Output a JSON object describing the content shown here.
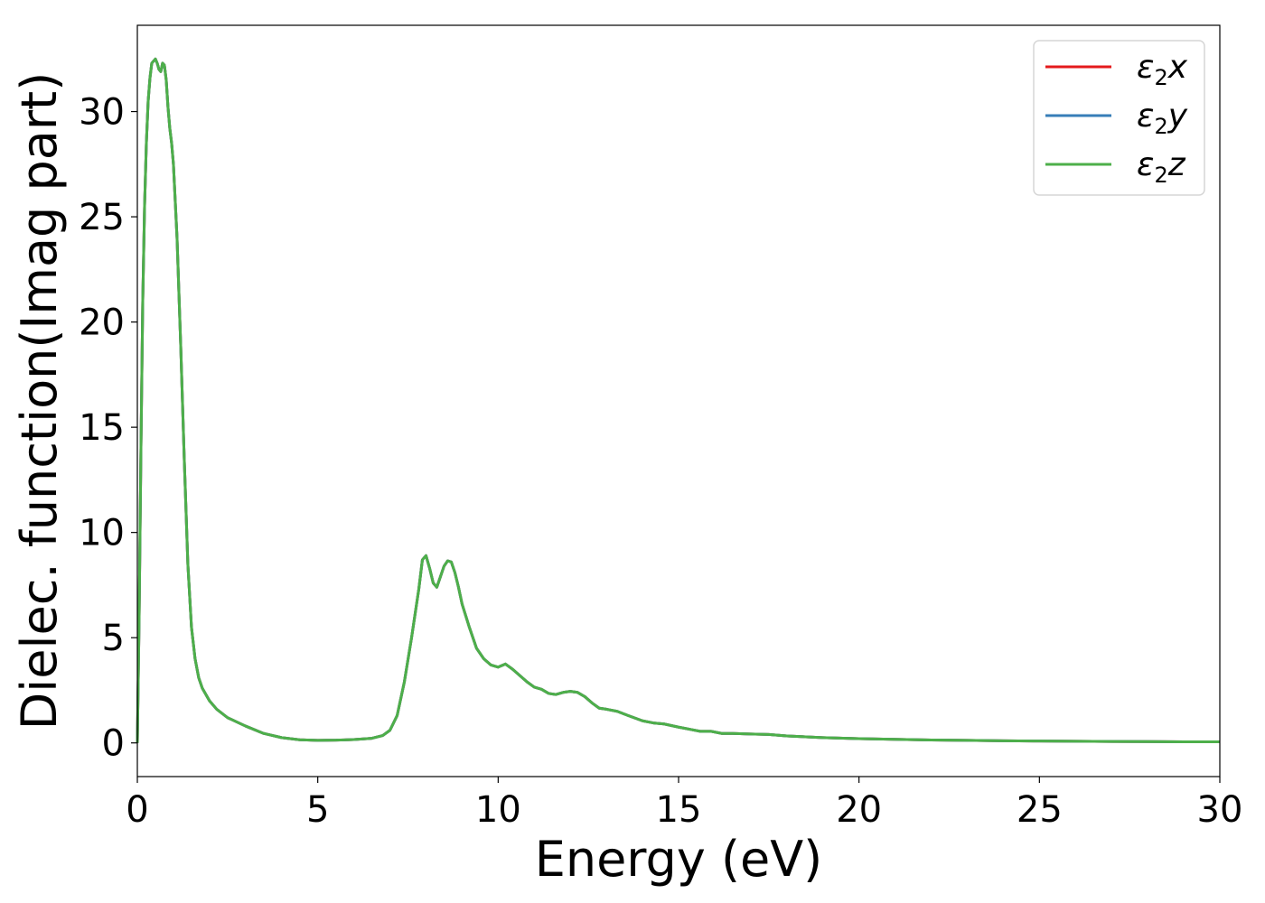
{
  "chart_data": {
    "type": "line",
    "title": "",
    "xlabel": "Energy (eV)",
    "ylabel": "Dielec. function(Imag part)",
    "xlim": [
      0,
      30
    ],
    "ylim": [
      -1.6,
      34.1
    ],
    "xticks": [
      0,
      5,
      10,
      15,
      20,
      25,
      30
    ],
    "yticks": [
      0,
      5,
      10,
      15,
      20,
      25,
      30
    ],
    "grid": false,
    "legend_position": "top-right",
    "series": [
      {
        "name": "ε2x",
        "legend_base": "ε",
        "legend_sub": "2",
        "legend_axis": "x",
        "color": "#e41a1c",
        "x": [
          0,
          0.05,
          0.1,
          0.15,
          0.2,
          0.25,
          0.3,
          0.35,
          0.4,
          0.5,
          0.55,
          0.6,
          0.65,
          0.7,
          0.75,
          0.8,
          0.85,
          0.9,
          0.95,
          1.0,
          1.1,
          1.2,
          1.3,
          1.4,
          1.5,
          1.6,
          1.7,
          1.8,
          2.0,
          2.2,
          2.5,
          3.0,
          3.5,
          4.0,
          4.5,
          5.0,
          5.5,
          6.0,
          6.5,
          6.8,
          7.0,
          7.2,
          7.4,
          7.6,
          7.8,
          7.9,
          8.0,
          8.1,
          8.2,
          8.3,
          8.4,
          8.5,
          8.6,
          8.7,
          8.8,
          8.9,
          9.0,
          9.2,
          9.4,
          9.6,
          9.8,
          10.0,
          10.2,
          10.4,
          10.6,
          10.8,
          11.0,
          11.2,
          11.4,
          11.6,
          11.8,
          12.0,
          12.2,
          12.4,
          12.6,
          12.8,
          13.0,
          13.3,
          13.6,
          14.0,
          14.3,
          14.6,
          15.0,
          15.3,
          15.6,
          15.9,
          16.2,
          16.5,
          17.0,
          17.5,
          18.0,
          19.0,
          20.0,
          21.0,
          22.0,
          23.0,
          24.0,
          25.0,
          26.0,
          27.0,
          28.0,
          29.0,
          30.0
        ],
        "y": [
          0,
          6,
          14,
          21,
          25.5,
          28.5,
          30.5,
          31.6,
          32.3,
          32.5,
          32.3,
          32.0,
          31.9,
          32.3,
          32.2,
          31.5,
          30.2,
          29.2,
          28.5,
          27.5,
          24.0,
          19.0,
          13.5,
          8.5,
          5.5,
          4.0,
          3.1,
          2.6,
          2.0,
          1.6,
          1.2,
          0.8,
          0.45,
          0.25,
          0.15,
          0.12,
          0.13,
          0.16,
          0.22,
          0.35,
          0.6,
          1.3,
          2.9,
          5.0,
          7.3,
          8.7,
          8.9,
          8.3,
          7.6,
          7.4,
          7.9,
          8.4,
          8.65,
          8.6,
          8.1,
          7.4,
          6.6,
          5.5,
          4.5,
          4.0,
          3.7,
          3.6,
          3.75,
          3.5,
          3.2,
          2.9,
          2.65,
          2.55,
          2.35,
          2.3,
          2.4,
          2.45,
          2.4,
          2.2,
          1.9,
          1.65,
          1.6,
          1.5,
          1.3,
          1.05,
          0.95,
          0.9,
          0.75,
          0.65,
          0.55,
          0.55,
          0.45,
          0.45,
          0.42,
          0.4,
          0.33,
          0.25,
          0.2,
          0.17,
          0.14,
          0.12,
          0.1,
          0.09,
          0.08,
          0.07,
          0.06,
          0.05,
          0.05
        ]
      },
      {
        "name": "ε2y",
        "legend_base": "ε",
        "legend_sub": "2",
        "legend_axis": "y",
        "color": "#377eb8",
        "x": [
          0,
          0.05,
          0.1,
          0.15,
          0.2,
          0.25,
          0.3,
          0.35,
          0.4,
          0.5,
          0.55,
          0.6,
          0.65,
          0.7,
          0.75,
          0.8,
          0.85,
          0.9,
          0.95,
          1.0,
          1.1,
          1.2,
          1.3,
          1.4,
          1.5,
          1.6,
          1.7,
          1.8,
          2.0,
          2.2,
          2.5,
          3.0,
          3.5,
          4.0,
          4.5,
          5.0,
          5.5,
          6.0,
          6.5,
          6.8,
          7.0,
          7.2,
          7.4,
          7.6,
          7.8,
          7.9,
          8.0,
          8.1,
          8.2,
          8.3,
          8.4,
          8.5,
          8.6,
          8.7,
          8.8,
          8.9,
          9.0,
          9.2,
          9.4,
          9.6,
          9.8,
          10.0,
          10.2,
          10.4,
          10.6,
          10.8,
          11.0,
          11.2,
          11.4,
          11.6,
          11.8,
          12.0,
          12.2,
          12.4,
          12.6,
          12.8,
          13.0,
          13.3,
          13.6,
          14.0,
          14.3,
          14.6,
          15.0,
          15.3,
          15.6,
          15.9,
          16.2,
          16.5,
          17.0,
          17.5,
          18.0,
          19.0,
          20.0,
          21.0,
          22.0,
          23.0,
          24.0,
          25.0,
          26.0,
          27.0,
          28.0,
          29.0,
          30.0
        ],
        "y": [
          0,
          6,
          14,
          21,
          25.5,
          28.5,
          30.5,
          31.6,
          32.3,
          32.5,
          32.3,
          32.0,
          31.9,
          32.3,
          32.2,
          31.5,
          30.2,
          29.2,
          28.5,
          27.5,
          24.0,
          19.0,
          13.5,
          8.5,
          5.5,
          4.0,
          3.1,
          2.6,
          2.0,
          1.6,
          1.2,
          0.8,
          0.45,
          0.25,
          0.15,
          0.12,
          0.13,
          0.16,
          0.22,
          0.35,
          0.6,
          1.3,
          2.9,
          5.0,
          7.3,
          8.7,
          8.9,
          8.3,
          7.6,
          7.4,
          7.9,
          8.4,
          8.65,
          8.6,
          8.1,
          7.4,
          6.6,
          5.5,
          4.5,
          4.0,
          3.7,
          3.6,
          3.75,
          3.5,
          3.2,
          2.9,
          2.65,
          2.55,
          2.35,
          2.3,
          2.4,
          2.45,
          2.4,
          2.2,
          1.9,
          1.65,
          1.6,
          1.5,
          1.3,
          1.05,
          0.95,
          0.9,
          0.75,
          0.65,
          0.55,
          0.55,
          0.45,
          0.45,
          0.42,
          0.4,
          0.33,
          0.25,
          0.2,
          0.17,
          0.14,
          0.12,
          0.1,
          0.09,
          0.08,
          0.07,
          0.06,
          0.05,
          0.05
        ]
      },
      {
        "name": "ε2z",
        "legend_base": "ε",
        "legend_sub": "2",
        "legend_axis": "z",
        "color": "#4daf4a",
        "x": [
          0,
          0.05,
          0.1,
          0.15,
          0.2,
          0.25,
          0.3,
          0.35,
          0.4,
          0.5,
          0.55,
          0.6,
          0.65,
          0.7,
          0.75,
          0.8,
          0.85,
          0.9,
          0.95,
          1.0,
          1.1,
          1.2,
          1.3,
          1.4,
          1.5,
          1.6,
          1.7,
          1.8,
          2.0,
          2.2,
          2.5,
          3.0,
          3.5,
          4.0,
          4.5,
          5.0,
          5.5,
          6.0,
          6.5,
          6.8,
          7.0,
          7.2,
          7.4,
          7.6,
          7.8,
          7.9,
          8.0,
          8.1,
          8.2,
          8.3,
          8.4,
          8.5,
          8.6,
          8.7,
          8.8,
          8.9,
          9.0,
          9.2,
          9.4,
          9.6,
          9.8,
          10.0,
          10.2,
          10.4,
          10.6,
          10.8,
          11.0,
          11.2,
          11.4,
          11.6,
          11.8,
          12.0,
          12.2,
          12.4,
          12.6,
          12.8,
          13.0,
          13.3,
          13.6,
          14.0,
          14.3,
          14.6,
          15.0,
          15.3,
          15.6,
          15.9,
          16.2,
          16.5,
          17.0,
          17.5,
          18.0,
          19.0,
          20.0,
          21.0,
          22.0,
          23.0,
          24.0,
          25.0,
          26.0,
          27.0,
          28.0,
          29.0,
          30.0
        ],
        "y": [
          0,
          6,
          14,
          21,
          25.5,
          28.5,
          30.5,
          31.6,
          32.3,
          32.5,
          32.3,
          32.0,
          31.9,
          32.3,
          32.2,
          31.5,
          30.2,
          29.2,
          28.5,
          27.5,
          24.0,
          19.0,
          13.5,
          8.5,
          5.5,
          4.0,
          3.1,
          2.6,
          2.0,
          1.6,
          1.2,
          0.8,
          0.45,
          0.25,
          0.15,
          0.12,
          0.13,
          0.16,
          0.22,
          0.35,
          0.6,
          1.3,
          2.9,
          5.0,
          7.3,
          8.7,
          8.9,
          8.3,
          7.6,
          7.4,
          7.9,
          8.4,
          8.65,
          8.6,
          8.1,
          7.4,
          6.6,
          5.5,
          4.5,
          4.0,
          3.7,
          3.6,
          3.75,
          3.5,
          3.2,
          2.9,
          2.65,
          2.55,
          2.35,
          2.3,
          2.4,
          2.45,
          2.4,
          2.2,
          1.9,
          1.65,
          1.6,
          1.5,
          1.3,
          1.05,
          0.95,
          0.9,
          0.75,
          0.65,
          0.55,
          0.55,
          0.45,
          0.45,
          0.42,
          0.4,
          0.33,
          0.25,
          0.2,
          0.17,
          0.14,
          0.12,
          0.1,
          0.09,
          0.08,
          0.07,
          0.06,
          0.05,
          0.05
        ]
      }
    ]
  }
}
